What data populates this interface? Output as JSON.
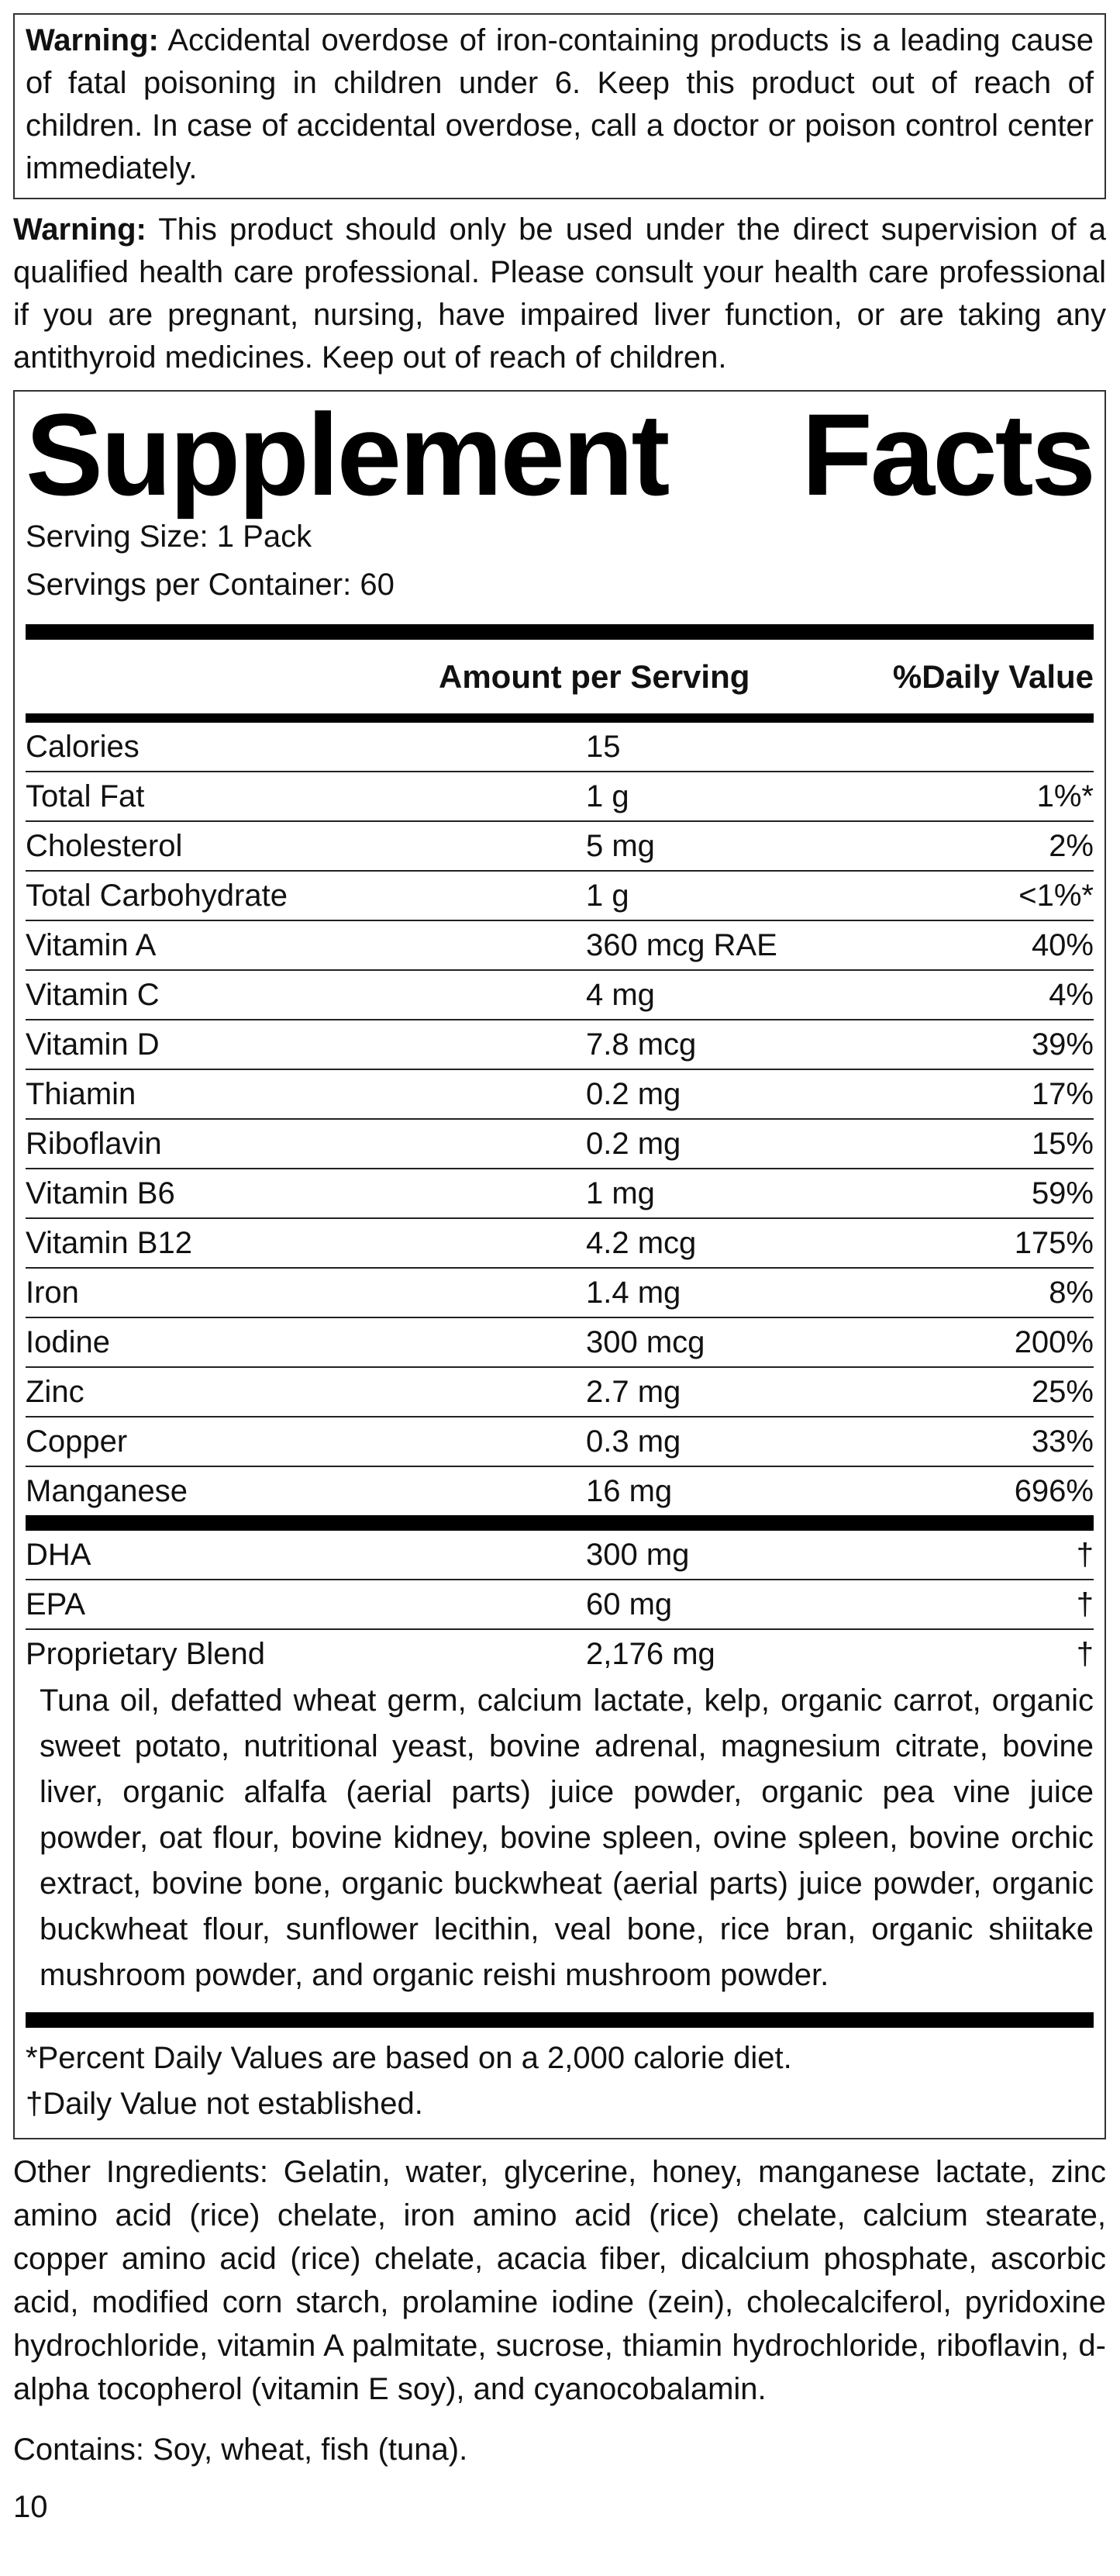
{
  "warnings": [
    {
      "label": "Warning:",
      "text": " Accidental overdose of iron-containing products is a leading cause of fatal poisoning in children under 6. Keep this product out of reach of children. In case of accidental overdose, call a doctor or poison control center immediately."
    },
    {
      "label": "Warning:",
      "text": " This product should only be used under the direct supervision of a qualified health care professional. Please consult your health care professional if you are pregnant, nursing, have impaired liver function, or are taking any antithyroid medicines. Keep out of reach of children."
    }
  ],
  "facts": {
    "title_word1": "Supplement",
    "title_word2": "Facts",
    "serving_size": "Serving Size: 1 Pack",
    "servings_per_container": "Servings per Container: 60",
    "header_amount": "Amount per Serving",
    "header_dv": "%Daily Value",
    "rows": [
      {
        "name": "Calories",
        "amount": "15",
        "dv": ""
      },
      {
        "name": "Total Fat",
        "amount": "1 g",
        "dv": "1%*"
      },
      {
        "name": "Cholesterol",
        "amount": "5 mg",
        "dv": "2%"
      },
      {
        "name": "Total Carbohydrate",
        "amount": "1 g",
        "dv": "<1%*"
      },
      {
        "name": "Vitamin A",
        "amount": "360 mcg RAE",
        "dv": "40%"
      },
      {
        "name": "Vitamin C",
        "amount": "4 mg",
        "dv": "4%"
      },
      {
        "name": "Vitamin D",
        "amount": "7.8 mcg",
        "dv": "39%"
      },
      {
        "name": "Thiamin",
        "amount": "0.2 mg",
        "dv": "17%"
      },
      {
        "name": "Riboflavin",
        "amount": "0.2 mg",
        "dv": "15%"
      },
      {
        "name": "Vitamin B6",
        "amount": "1 mg",
        "dv": "59%"
      },
      {
        "name": "Vitamin B12",
        "amount": "4.2 mcg",
        "dv": "175%"
      },
      {
        "name": "Iron",
        "amount": "1.4 mg",
        "dv": "8%"
      },
      {
        "name": "Iodine",
        "amount": "300 mcg",
        "dv": "200%"
      },
      {
        "name": "Zinc",
        "amount": "2.7 mg",
        "dv": "25%"
      },
      {
        "name": "Copper",
        "amount": "0.3 mg",
        "dv": "33%"
      },
      {
        "name": "Manganese",
        "amount": "16 mg",
        "dv": "696%"
      }
    ],
    "other_rows": [
      {
        "name": "DHA",
        "amount": "300 mg",
        "dv": "†"
      },
      {
        "name": "EPA",
        "amount": "60 mg",
        "dv": "†"
      },
      {
        "name": "Proprietary Blend",
        "amount": "2,176 mg",
        "dv": "†"
      }
    ],
    "blend_text": "Tuna oil, defatted wheat germ, calcium lactate, kelp, organic carrot, organic sweet potato, nutritional yeast, bovine adrenal, magnesium citrate, bovine liver, organic alfalfa (aerial parts) juice powder, organic pea vine juice powder, oat flour, bovine kidney, bovine spleen, ovine spleen, bovine orchic extract, bovine bone, organic buckwheat (aerial parts) juice powder, organic buckwheat flour, sunflower lecithin, veal bone, rice bran, organic shiitake mushroom powder, and organic reishi mushroom powder.",
    "footnote_1": "*Percent Daily Values are based on a 2,000 calorie diet.",
    "footnote_2": "†Daily Value not established."
  },
  "other_ingredients": "Other Ingredients: Gelatin, water, glycerine, honey, manganese lactate, zinc amino acid (rice) chelate, iron amino acid (rice) chelate, calcium stearate, copper amino acid (rice) chelate, acacia fiber, dicalcium phosphate, ascorbic acid, modified corn starch, prolamine iodine (zein), cholecalciferol, pyridoxine hydrochloride, vitamin A palmitate, sucrose, thiamin hydrochloride, riboflavin, d-alpha tocopherol (vitamin E soy), and cyanocobalamin.",
  "contains": "Contains: Soy, wheat, fish (tuna).",
  "page_number": "10"
}
